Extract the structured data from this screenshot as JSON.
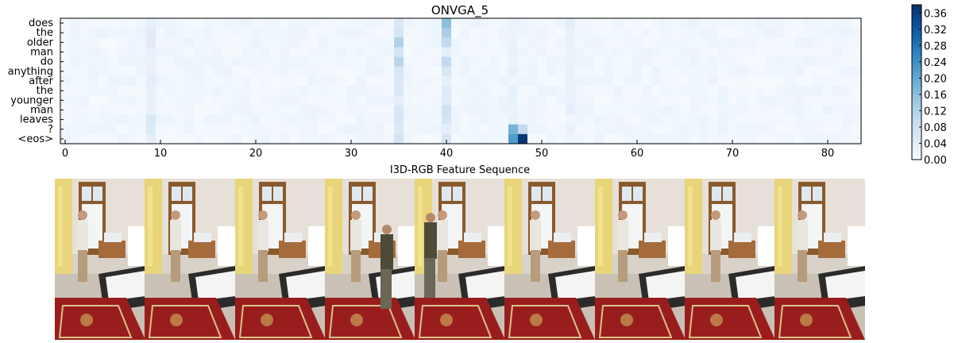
{
  "chart_data": {
    "type": "heatmap",
    "title": "ONVGA_5",
    "xlabel": "I3D-RGB Feature Sequence",
    "ylabel": "",
    "y_categories": [
      "does",
      "the",
      "older",
      "man",
      "do",
      "anything",
      "after",
      "the",
      "younger",
      "man",
      "leaves",
      "?",
      "<eos>"
    ],
    "x_ticks": [
      0,
      10,
      20,
      30,
      40,
      50,
      60,
      70,
      80
    ],
    "xlim": [
      0,
      84
    ],
    "colorbar": {
      "range": [
        0.0,
        0.38
      ],
      "ticks": [
        "0.36",
        "0.32",
        "0.28",
        "0.24",
        "0.20",
        "0.16",
        "0.12",
        "0.08",
        "0.04",
        "0.00"
      ]
    },
    "highlights": [
      {
        "row": "does",
        "x": 40,
        "value": 0.16
      },
      {
        "row": "the",
        "x": 40,
        "value": 0.13
      },
      {
        "row": "older",
        "x": 35,
        "value": 0.12
      },
      {
        "row": "older",
        "x": 40,
        "value": 0.1
      },
      {
        "row": "do",
        "x": 35,
        "value": 0.11
      },
      {
        "row": "do",
        "x": 40,
        "value": 0.1
      },
      {
        "row": "?",
        "x": 47,
        "value": 0.18
      },
      {
        "row": "?",
        "x": 48,
        "value": 0.1
      },
      {
        "row": "<eos>",
        "x": 47,
        "value": 0.22
      },
      {
        "row": "<eos>",
        "x": 48,
        "value": 0.37
      }
    ]
  },
  "frames": {
    "count": 9,
    "description_free": true
  },
  "colors": {
    "cmap_low": "#f7fbff",
    "cmap_high": "#08306b"
  }
}
